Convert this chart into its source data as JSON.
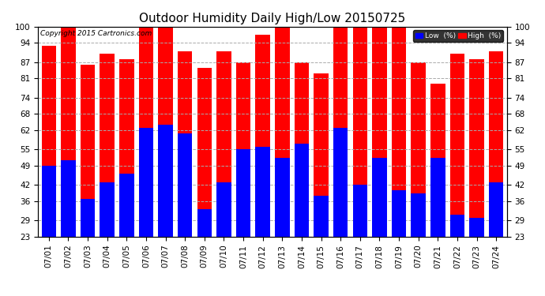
{
  "title": "Outdoor Humidity Daily High/Low 20150725",
  "copyright": "Copyright 2015 Cartronics.com",
  "dates": [
    "07/01",
    "07/02",
    "07/03",
    "07/04",
    "07/05",
    "07/06",
    "07/07",
    "07/08",
    "07/09",
    "07/10",
    "07/11",
    "07/12",
    "07/13",
    "07/14",
    "07/15",
    "07/16",
    "07/17",
    "07/18",
    "07/19",
    "07/20",
    "07/21",
    "07/22",
    "07/23",
    "07/24"
  ],
  "high_values": [
    93,
    100,
    86,
    90,
    88,
    100,
    100,
    91,
    85,
    91,
    87,
    97,
    100,
    87,
    83,
    100,
    100,
    100,
    100,
    87,
    79,
    90,
    88,
    91
  ],
  "low_values": [
    49,
    51,
    37,
    43,
    46,
    63,
    64,
    61,
    33,
    43,
    55,
    56,
    52,
    57,
    38,
    63,
    42,
    52,
    40,
    39,
    52,
    31,
    30,
    43
  ],
  "bar_width": 0.75,
  "ylim": [
    23,
    100
  ],
  "yticks": [
    23,
    29,
    36,
    42,
    49,
    55,
    62,
    68,
    74,
    81,
    87,
    94,
    100
  ],
  "high_color": "#ff0000",
  "low_color": "#0000ff",
  "background_color": "#ffffff",
  "grid_color": "#aaaaaa",
  "title_fontsize": 11,
  "tick_fontsize": 7.5,
  "legend_labels": [
    "Low  (%)",
    "High  (%)"
  ]
}
